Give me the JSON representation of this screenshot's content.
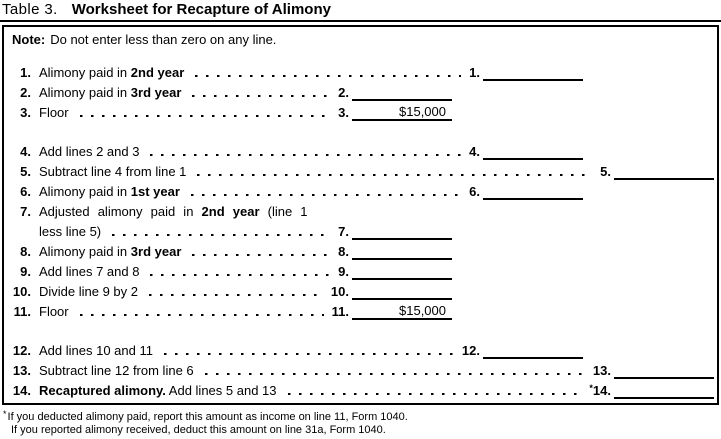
{
  "title": {
    "label": "Table 3.",
    "text": "Worksheet for Recapture of Alimony"
  },
  "note": {
    "label": "Note:",
    "text": "Do not enter less than zero on any line."
  },
  "rows": [
    {
      "num": "1.",
      "pre": "Alimony paid in ",
      "bold": "2nd year",
      "post": "",
      "col": "b",
      "entry": "1.",
      "value": "",
      "star": "",
      "gap": false
    },
    {
      "num": "2.",
      "pre": "Alimony paid in ",
      "bold": "3rd year",
      "post": "",
      "col": "a",
      "entry": "2.",
      "value": "",
      "star": "",
      "gap": false
    },
    {
      "num": "3.",
      "pre": "Floor",
      "bold": "",
      "post": "",
      "col": "a",
      "entry": "3.",
      "value": "$15,000",
      "star": "",
      "gap": false
    },
    {
      "num": "4.",
      "pre": "Add lines 2 and 3",
      "bold": "",
      "post": "",
      "col": "b",
      "entry": "4.",
      "value": "",
      "star": "",
      "gap": true
    },
    {
      "num": "5.",
      "pre": "Subtract line 4 from line 1",
      "bold": "",
      "post": "",
      "col": "c",
      "entry": "5.",
      "value": "",
      "star": "",
      "gap": false
    },
    {
      "num": "6.",
      "pre": "Alimony paid in ",
      "bold": "1st year",
      "post": "",
      "col": "b",
      "entry": "6.",
      "value": "",
      "star": "",
      "gap": false
    },
    {
      "num": "7.",
      "pre": "Adjusted alimony paid in ",
      "bold": "2nd year",
      "post": " (line 1",
      "line2": "less line 5)",
      "col": "a",
      "entry": "7.",
      "value": "",
      "star": "",
      "gap": false
    },
    {
      "num": "8.",
      "pre": "Alimony paid in ",
      "bold": "3rd year",
      "post": "",
      "col": "a",
      "entry": "8.",
      "value": "",
      "star": "",
      "gap": false
    },
    {
      "num": "9.",
      "pre": "Add lines 7 and 8",
      "bold": "",
      "post": "",
      "col": "a",
      "entry": "9.",
      "value": "",
      "star": "",
      "gap": false
    },
    {
      "num": "10.",
      "pre": "Divide line 9 by 2",
      "bold": "",
      "post": "",
      "col": "a",
      "entry": "10.",
      "value": "",
      "star": "",
      "gap": false
    },
    {
      "num": "11.",
      "pre": "Floor",
      "bold": "",
      "post": "",
      "col": "a",
      "entry": "11.",
      "value": "$15,000",
      "star": "",
      "gap": false
    },
    {
      "num": "12.",
      "pre": "Add lines 10 and 11",
      "bold": "",
      "post": "",
      "col": "b",
      "entry": "12.",
      "value": "",
      "star": "",
      "gap": true
    },
    {
      "num": "13.",
      "pre": "Subtract line 12 from line 6",
      "bold": "",
      "post": "",
      "col": "c",
      "entry": "13.",
      "value": "",
      "star": "",
      "gap": false
    },
    {
      "num": "14.",
      "pre": "",
      "bold": "Recaptured alimony.",
      "post": " Add lines 5 and 13",
      "col": "c",
      "entry": "14.",
      "value": "",
      "star": "*",
      "gap": false
    }
  ],
  "footnotes": {
    "marker": "*",
    "line1": "If you deducted alimony paid, report this amount as income on line 11, Form 1040.",
    "line2": "If you reported alimony received, deduct this amount on line 31a, Form 1040."
  }
}
